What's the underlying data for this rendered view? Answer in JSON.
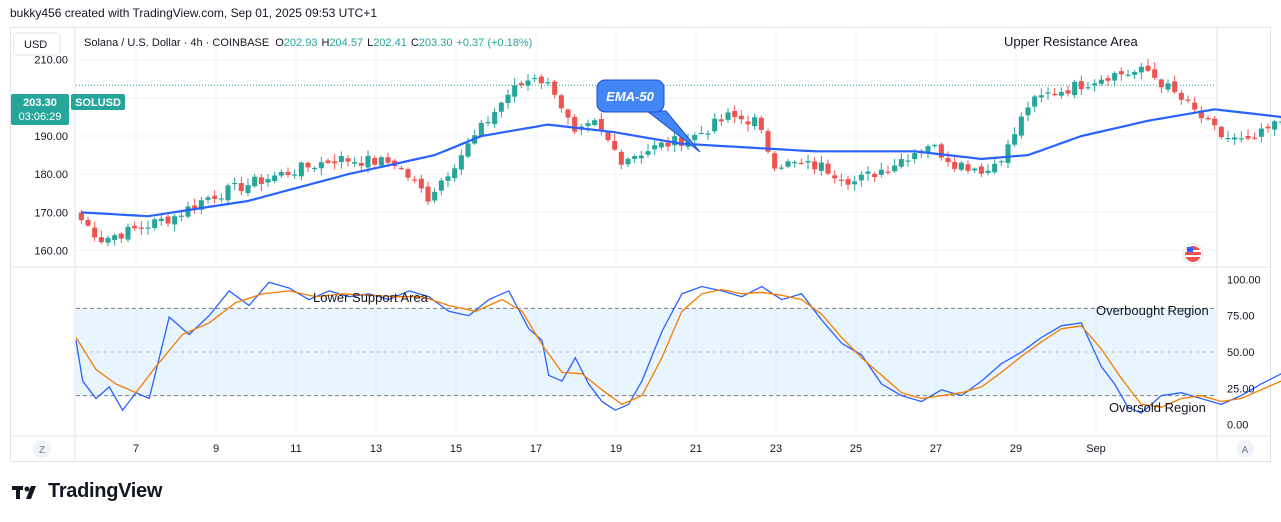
{
  "header": {
    "credit": "bukky456 created with TradingView.com, Sep 01, 2025 09:53 UTC+1"
  },
  "currency_button": "USD",
  "symbol": {
    "name": "Solana / U.S. Dollar · 4h · COINBASE",
    "open_label": "O",
    "open": "202.93",
    "high_label": "H",
    "high": "204.57",
    "low_label": "L",
    "low": "202.41",
    "close_label": "C",
    "close": "203.30",
    "change": "+0.37 (+0.18%)"
  },
  "price_tag": {
    "ticker": "SOLUSD",
    "price": "203.30",
    "countdown": "03:06:29"
  },
  "annotations": {
    "ema": "EMA-50",
    "upper_resistance": "Upper Resistance Area",
    "lower_support": "Lower Support Area",
    "overbought": "Overbought Region",
    "oversold": "Oversold Region"
  },
  "footer": {
    "z_button": "Z",
    "a_button": "A",
    "logo_text": "TradingView"
  },
  "colors": {
    "up": "#26a69a",
    "down": "#ef5350",
    "ema": "#2962ff",
    "k_line": "#2962ff",
    "d_line": "#f57c00",
    "band": "#2196f3",
    "tag": "#26a69a"
  },
  "chart_data": [
    {
      "type": "candlestick",
      "title": "Solana / U.S. Dollar · 4h · COINBASE",
      "y_ticks": [
        "210.00",
        "200.00",
        "190.00",
        "180.00",
        "170.00",
        "160.00"
      ],
      "ylim": [
        157,
        217
      ],
      "x_ticks": [
        "7",
        "9",
        "11",
        "13",
        "15",
        "17",
        "19",
        "21",
        "23",
        "25",
        "27",
        "29",
        "Sep"
      ],
      "x_tick_day_index": [
        1,
        3,
        5,
        7,
        9,
        11,
        13,
        15,
        17,
        19,
        21,
        23,
        25
      ],
      "x_start_day_index": -0.5,
      "candles_per_day": 6,
      "current_price": 203.3,
      "close_anchors": [
        [
          0,
          168
        ],
        [
          3,
          163
        ],
        [
          7,
          165
        ],
        [
          14,
          169
        ],
        [
          19,
          174
        ],
        [
          28,
          179
        ],
        [
          38,
          184
        ],
        [
          47,
          183
        ],
        [
          52,
          174
        ],
        [
          56,
          183
        ],
        [
          64,
          201
        ],
        [
          68,
          206
        ],
        [
          71,
          202
        ],
        [
          74,
          190
        ],
        [
          77,
          193
        ],
        [
          81,
          184
        ],
        [
          86,
          187
        ],
        [
          92,
          190
        ],
        [
          97,
          195
        ],
        [
          101,
          194
        ],
        [
          104,
          183
        ],
        [
          111,
          182
        ],
        [
          116,
          178
        ],
        [
          121,
          182
        ],
        [
          127,
          188
        ],
        [
          131,
          183
        ],
        [
          136,
          181
        ],
        [
          139,
          187
        ],
        [
          142,
          198
        ],
        [
          145,
          201
        ],
        [
          149,
          203
        ],
        [
          154,
          206
        ],
        [
          160,
          207
        ],
        [
          166,
          198
        ],
        [
          171,
          190
        ],
        [
          175,
          188
        ],
        [
          180,
          194
        ],
        [
          186,
          203
        ],
        [
          191,
          208
        ],
        [
          196,
          210
        ],
        [
          201,
          206
        ],
        [
          206,
          203
        ],
        [
          213,
          203
        ],
        [
          218,
          202
        ],
        [
          223,
          200
        ],
        [
          225,
          203
        ]
      ],
      "ema50_anchors": [
        [
          0,
          170
        ],
        [
          10,
          169
        ],
        [
          25,
          173
        ],
        [
          40,
          180
        ],
        [
          53,
          185
        ],
        [
          60,
          190
        ],
        [
          70,
          193
        ],
        [
          80,
          191
        ],
        [
          90,
          188
        ],
        [
          100,
          187
        ],
        [
          110,
          186
        ],
        [
          125,
          186
        ],
        [
          135,
          184
        ],
        [
          142,
          185
        ],
        [
          150,
          190
        ],
        [
          160,
          194
        ],
        [
          170,
          197
        ],
        [
          180,
          195
        ],
        [
          190,
          196
        ],
        [
          200,
          200
        ],
        [
          210,
          203
        ],
        [
          220,
          203
        ],
        [
          225,
          203
        ]
      ],
      "series": [
        {
          "name": "EMA-50"
        }
      ]
    },
    {
      "type": "line",
      "y_ticks": [
        "100.00",
        "75.00",
        "50.00",
        "25.00",
        "0.00"
      ],
      "ylim": [
        -5,
        105
      ],
      "overbought_level": 80,
      "oversold_level": 20,
      "midline_level": 50,
      "k_anchors": [
        [
          0,
          58
        ],
        [
          1,
          30
        ],
        [
          3,
          18
        ],
        [
          5,
          26
        ],
        [
          7,
          10
        ],
        [
          9,
          22
        ],
        [
          11,
          18
        ],
        [
          14,
          74
        ],
        [
          17,
          62
        ],
        [
          20,
          75
        ],
        [
          23,
          92
        ],
        [
          26,
          82
        ],
        [
          29,
          98
        ],
        [
          32,
          94
        ],
        [
          35,
          86
        ],
        [
          38,
          92
        ],
        [
          41,
          88
        ],
        [
          44,
          90
        ],
        [
          47,
          86
        ],
        [
          50,
          92
        ],
        [
          53,
          88
        ],
        [
          56,
          78
        ],
        [
          59,
          75
        ],
        [
          62,
          86
        ],
        [
          65,
          92
        ],
        [
          68,
          66
        ],
        [
          70,
          58
        ],
        [
          71,
          34
        ],
        [
          73,
          30
        ],
        [
          75,
          46
        ],
        [
          77,
          28
        ],
        [
          79,
          16
        ],
        [
          81,
          10
        ],
        [
          83,
          14
        ],
        [
          85,
          30
        ],
        [
          88,
          64
        ],
        [
          91,
          90
        ],
        [
          94,
          95
        ],
        [
          97,
          92
        ],
        [
          100,
          88
        ],
        [
          103,
          95
        ],
        [
          106,
          86
        ],
        [
          109,
          90
        ],
        [
          112,
          72
        ],
        [
          115,
          56
        ],
        [
          118,
          48
        ],
        [
          121,
          28
        ],
        [
          124,
          20
        ],
        [
          127,
          16
        ],
        [
          130,
          24
        ],
        [
          133,
          20
        ],
        [
          136,
          30
        ],
        [
          139,
          42
        ],
        [
          142,
          50
        ],
        [
          145,
          60
        ],
        [
          148,
          68
        ],
        [
          151,
          70
        ],
        [
          154,
          40
        ],
        [
          156,
          28
        ],
        [
          158,
          12
        ],
        [
          160,
          8
        ],
        [
          163,
          20
        ],
        [
          166,
          22
        ],
        [
          169,
          18
        ],
        [
          172,
          14
        ],
        [
          175,
          20
        ],
        [
          178,
          28
        ],
        [
          181,
          35
        ],
        [
          184,
          52
        ],
        [
          187,
          65
        ],
        [
          190,
          75
        ],
        [
          193,
          76
        ],
        [
          196,
          80
        ],
        [
          199,
          72
        ],
        [
          202,
          60
        ],
        [
          205,
          40
        ],
        [
          207,
          32
        ],
        [
          209,
          18
        ],
        [
          211,
          15
        ],
        [
          214,
          17
        ],
        [
          217,
          24
        ],
        [
          220,
          28
        ],
        [
          223,
          22
        ],
        [
          225,
          62
        ],
        [
          227,
          65
        ]
      ],
      "d_anchors": [
        [
          0,
          60
        ],
        [
          3,
          38
        ],
        [
          6,
          28
        ],
        [
          9,
          22
        ],
        [
          12,
          40
        ],
        [
          16,
          62
        ],
        [
          20,
          70
        ],
        [
          24,
          84
        ],
        [
          28,
          90
        ],
        [
          32,
          92
        ],
        [
          36,
          88
        ],
        [
          40,
          90
        ],
        [
          44,
          89
        ],
        [
          48,
          88
        ],
        [
          52,
          88
        ],
        [
          56,
          82
        ],
        [
          60,
          78
        ],
        [
          64,
          86
        ],
        [
          67,
          78
        ],
        [
          70,
          55
        ],
        [
          73,
          36
        ],
        [
          76,
          35
        ],
        [
          79,
          24
        ],
        [
          82,
          14
        ],
        [
          85,
          20
        ],
        [
          88,
          46
        ],
        [
          91,
          78
        ],
        [
          94,
          90
        ],
        [
          97,
          93
        ],
        [
          100,
          90
        ],
        [
          103,
          91
        ],
        [
          106,
          89
        ],
        [
          109,
          86
        ],
        [
          112,
          76
        ],
        [
          115,
          60
        ],
        [
          118,
          46
        ],
        [
          121,
          34
        ],
        [
          124,
          22
        ],
        [
          127,
          18
        ],
        [
          130,
          20
        ],
        [
          133,
          22
        ],
        [
          136,
          26
        ],
        [
          139,
          36
        ],
        [
          142,
          47
        ],
        [
          145,
          57
        ],
        [
          148,
          66
        ],
        [
          151,
          68
        ],
        [
          154,
          52
        ],
        [
          157,
          32
        ],
        [
          160,
          14
        ],
        [
          163,
          12
        ],
        [
          166,
          18
        ],
        [
          169,
          20
        ],
        [
          172,
          16
        ],
        [
          175,
          18
        ],
        [
          178,
          24
        ],
        [
          181,
          30
        ],
        [
          184,
          44
        ],
        [
          187,
          58
        ],
        [
          190,
          70
        ],
        [
          193,
          74
        ],
        [
          196,
          78
        ],
        [
          199,
          74
        ],
        [
          202,
          64
        ],
        [
          205,
          46
        ],
        [
          208,
          30
        ],
        [
          211,
          20
        ],
        [
          214,
          17
        ],
        [
          217,
          20
        ],
        [
          220,
          25
        ],
        [
          223,
          24
        ],
        [
          225,
          40
        ],
        [
          227,
          48
        ]
      ],
      "series": []
    }
  ]
}
